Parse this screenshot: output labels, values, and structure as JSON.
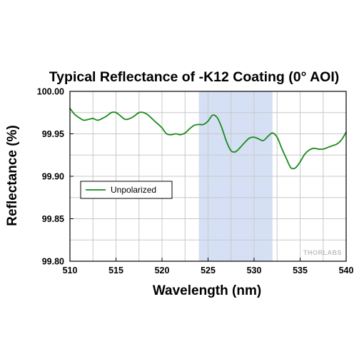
{
  "chart_data": {
    "type": "line",
    "title": "Typical Reflectance of -K12 Coating (0° AOI)",
    "xlabel": "Wavelength (nm)",
    "ylabel": "Reflectance (%)",
    "xlim": [
      510,
      540
    ],
    "ylim": [
      99.8,
      100.0
    ],
    "x_ticks": [
      510,
      515,
      520,
      525,
      530,
      535,
      540
    ],
    "x_tick_labels": [
      "510",
      "515",
      "520",
      "525",
      "530",
      "535",
      "540"
    ],
    "y_ticks": [
      99.8,
      99.85,
      99.9,
      99.95,
      100.0
    ],
    "y_tick_labels": [
      "99.80",
      "99.85",
      "99.90",
      "99.95",
      "100.00"
    ],
    "grid": true,
    "legend_position": "middle-left",
    "highlight_band": {
      "x_start": 524,
      "x_end": 532,
      "color": "#d6e0f5"
    },
    "watermark": "THORLABS",
    "series": [
      {
        "name": "Unpolarized",
        "color": "#1a8a1a",
        "x": [
          510,
          510.5,
          511,
          511.5,
          512,
          512.5,
          513,
          513.5,
          514,
          514.5,
          515,
          515.5,
          516,
          516.5,
          517,
          517.5,
          518,
          518.5,
          519,
          519.5,
          520,
          520.5,
          521,
          521.5,
          522,
          522.5,
          523,
          523.5,
          524,
          524.5,
          525,
          525.5,
          526,
          526.5,
          527,
          527.5,
          528,
          528.5,
          529,
          529.5,
          530,
          530.5,
          531,
          531.5,
          532,
          532.5,
          533,
          533.5,
          534,
          534.5,
          535,
          535.5,
          536,
          536.5,
          537,
          537.5,
          538,
          538.5,
          539,
          539.5,
          540
        ],
        "y": [
          99.98,
          99.973,
          99.969,
          99.966,
          99.967,
          99.968,
          99.966,
          99.968,
          99.971,
          99.975,
          99.975,
          99.971,
          99.967,
          99.968,
          99.971,
          99.975,
          99.975,
          99.972,
          99.967,
          99.962,
          99.957,
          99.95,
          99.949,
          99.95,
          99.949,
          99.951,
          99.956,
          99.96,
          99.961,
          99.961,
          99.965,
          99.972,
          99.969,
          99.957,
          99.941,
          99.93,
          99.929,
          99.934,
          99.94,
          99.945,
          99.946,
          99.944,
          99.942,
          99.947,
          99.951,
          99.946,
          99.933,
          99.921,
          99.91,
          99.91,
          99.917,
          99.926,
          99.931,
          99.933,
          99.932,
          99.932,
          99.934,
          99.936,
          99.938,
          99.943,
          99.952
        ]
      }
    ]
  }
}
